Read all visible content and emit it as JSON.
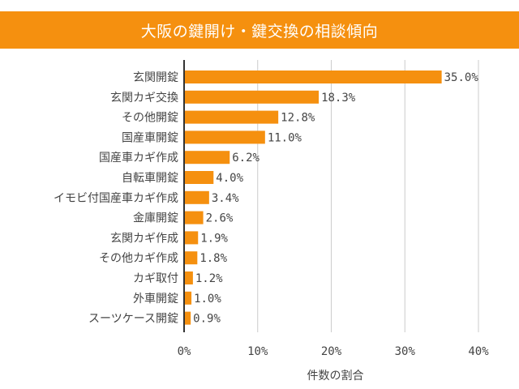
{
  "title": "大阪の鍵開け・鍵交換の相談傾向",
  "colors": {
    "accent": "#f5900f",
    "bar": "#f5900f",
    "grid": "#cccccc",
    "axis": "#333333",
    "text": "#444444"
  },
  "chart_data": {
    "type": "bar",
    "orientation": "horizontal",
    "title": "大阪の鍵開け・鍵交換の相談傾向",
    "xlabel": "件数の割合",
    "ylabel": "",
    "xlim": [
      0,
      40
    ],
    "x_ticks": [
      0,
      10,
      20,
      30,
      40
    ],
    "x_tick_labels": [
      "0%",
      "10%",
      "20%",
      "30%",
      "40%"
    ],
    "grid": true,
    "categories": [
      "玄関開錠",
      "玄関カギ交換",
      "その他開錠",
      "国産車開錠",
      "国産車カギ作成",
      "自転車開錠",
      "イモビ付国産車カギ作成",
      "金庫開錠",
      "玄関カギ作成",
      "その他カギ作成",
      "カギ取付",
      "外車開錠",
      "スーツケース開錠"
    ],
    "values": [
      35.0,
      18.3,
      12.8,
      11.0,
      6.2,
      4.0,
      3.4,
      2.6,
      1.9,
      1.8,
      1.2,
      1.0,
      0.9
    ],
    "value_labels": [
      "35.0%",
      "18.3%",
      "12.8%",
      "11.0%",
      "6.2%",
      "4.0%",
      "3.4%",
      "2.6%",
      "1.9%",
      "1.8%",
      "1.2%",
      "1.0%",
      "0.9%"
    ]
  }
}
